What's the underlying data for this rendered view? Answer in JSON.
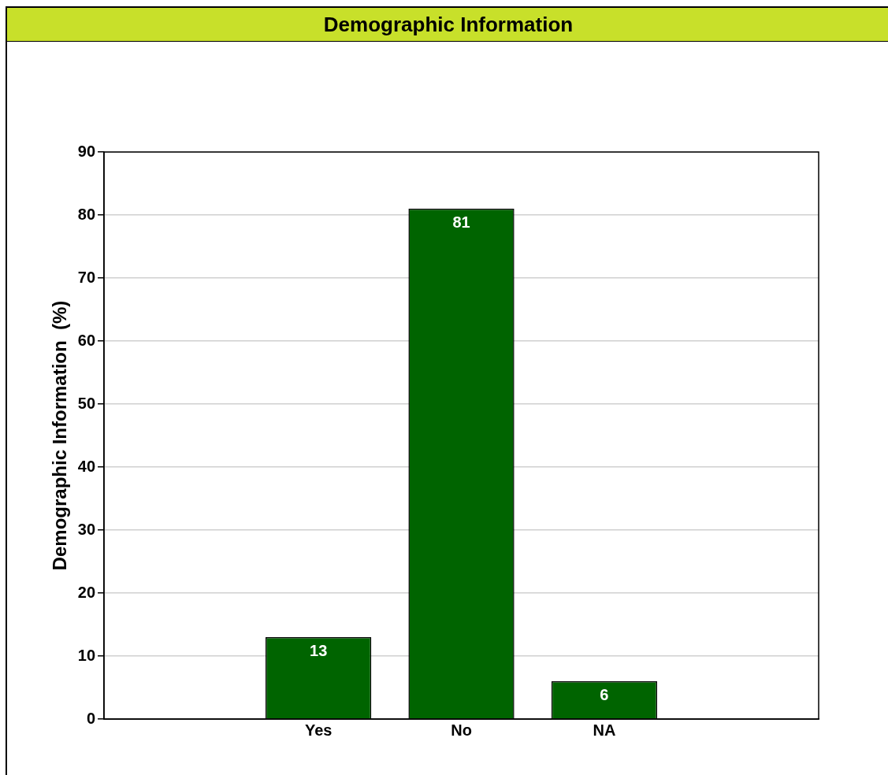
{
  "chart_data": {
    "type": "bar",
    "title": "Demographic Information",
    "ylabel": "Demographic Information  (%)",
    "categories": [
      null,
      "Yes",
      "No",
      "NA",
      null
    ],
    "values": [
      null,
      13,
      81,
      6,
      null
    ],
    "color": "#006400",
    "ylim": [
      0,
      90
    ],
    "yticks": [
      0,
      10,
      20,
      30,
      40,
      50,
      60,
      70,
      80,
      90
    ],
    "grid": "y",
    "data_labels": true
  }
}
